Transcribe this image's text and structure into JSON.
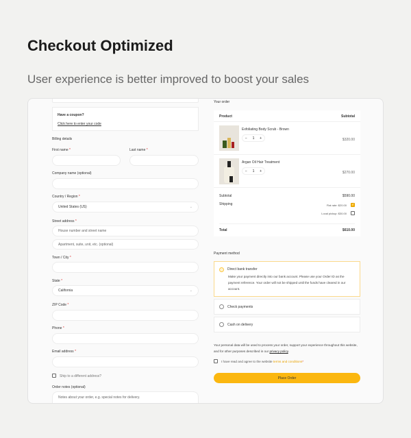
{
  "hero": {
    "title": "Checkout Optimized",
    "subtitle": "User experience is better improved to boost your sales"
  },
  "coupon": {
    "title": "Have a coupon?",
    "link": "Click here to enter your code"
  },
  "billing": {
    "heading": "Billing details",
    "first_name": "First name",
    "last_name": "Last name",
    "company": "Company name (optional)",
    "country": "Country / Region",
    "country_value": "United States (US)",
    "street": "Street address",
    "street_placeholder1": "House number and street name",
    "street_placeholder2": "Apartment, suite, unit, etc. (optional)",
    "town": "Town / City",
    "state": "State",
    "state_value": "California",
    "zip": "ZIP Code",
    "phone": "Phone",
    "email": "Email address",
    "ship_different": "Ship to a different address?",
    "notes": "Order notes (optional)",
    "notes_placeholder": "Notes about your order, e.g. special notes for delivery.",
    "required_mark": "*"
  },
  "order": {
    "heading": "Your order",
    "col_product": "Product",
    "col_subtotal": "Subtotal",
    "items": [
      {
        "name": "Exfoliating Body Scrub - Brown",
        "qty": "1",
        "price": "$320.00"
      },
      {
        "name": "Argan Oil Hair Treatment",
        "qty": "1",
        "price": "$270.00"
      }
    ],
    "minus": "−",
    "plus": "+",
    "subtotal_label": "Subtotal",
    "subtotal": "$590.00",
    "shipping_label": "Shipping",
    "shipping_options": [
      {
        "label": "Flat rate: $20.00",
        "checked": true
      },
      {
        "label": "Local pickup: $30.00",
        "checked": false
      }
    ],
    "total_label": "Total",
    "total": "$610.00"
  },
  "payment": {
    "heading": "Payment method",
    "methods": [
      {
        "label": "Direct bank transfer",
        "selected": true,
        "description": "Make your payment directly into our bank account. Please use your Order ID as the payment reference. Your order will not be shipped until the funds have cleared in our account."
      },
      {
        "label": "Check payments",
        "selected": false
      },
      {
        "label": "Cash on delivery",
        "selected": false
      }
    ],
    "privacy_text": "Your personal data will be used to process your order, support your experience throughout this website, and for other purposes described in our ",
    "privacy_link": "privacy policy",
    "terms_text": "I have read and agree to the website ",
    "terms_link": "terms and conditions",
    "place_order": "Place Order"
  },
  "colors": {
    "accent": "#fbb710",
    "background": "#f2f2f0"
  }
}
